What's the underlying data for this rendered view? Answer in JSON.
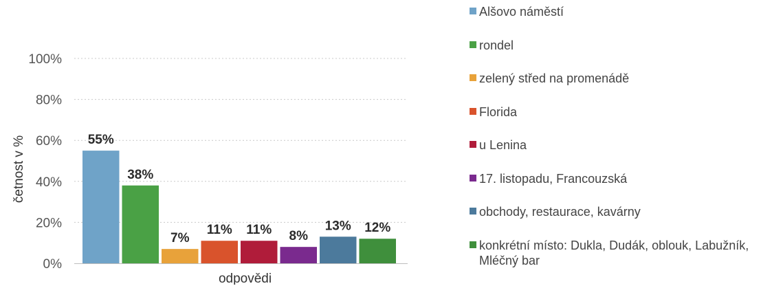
{
  "chart_data": {
    "type": "bar",
    "title": "",
    "xlabel": "odpovědi",
    "ylabel": "četnost v %",
    "ylim": [
      0,
      100
    ],
    "yticks": [
      "0%",
      "20%",
      "40%",
      "60%",
      "80%",
      "100%"
    ],
    "grid": true,
    "legend_position": "right",
    "series": [
      {
        "name": "Alšovo náměstí",
        "value": 55,
        "label": "55%",
        "color": "#6fa3c8"
      },
      {
        "name": "rondel",
        "value": 38,
        "label": "38%",
        "color": "#4aa145"
      },
      {
        "name": "zelený střed na promenádě",
        "value": 7,
        "label": "7%",
        "color": "#e8a23a"
      },
      {
        "name": "Florida",
        "value": 11,
        "label": "11%",
        "color": "#d9532c"
      },
      {
        "name": "u Lenina",
        "value": 11,
        "label": "11%",
        "color": "#b01c3a"
      },
      {
        "name": "17. listopadu, Francouzská",
        "value": 8,
        "label": "8%",
        "color": "#7a2a8e"
      },
      {
        "name": "obchody, restaurace, kavárny",
        "value": 13,
        "label": "13%",
        "color": "#4c7a9c"
      },
      {
        "name": "konkrétní místo: Dukla, Dudák, oblouk, Labužník, Mléčný bar",
        "value": 12,
        "label": "12%",
        "color": "#3f8f3c"
      }
    ]
  }
}
